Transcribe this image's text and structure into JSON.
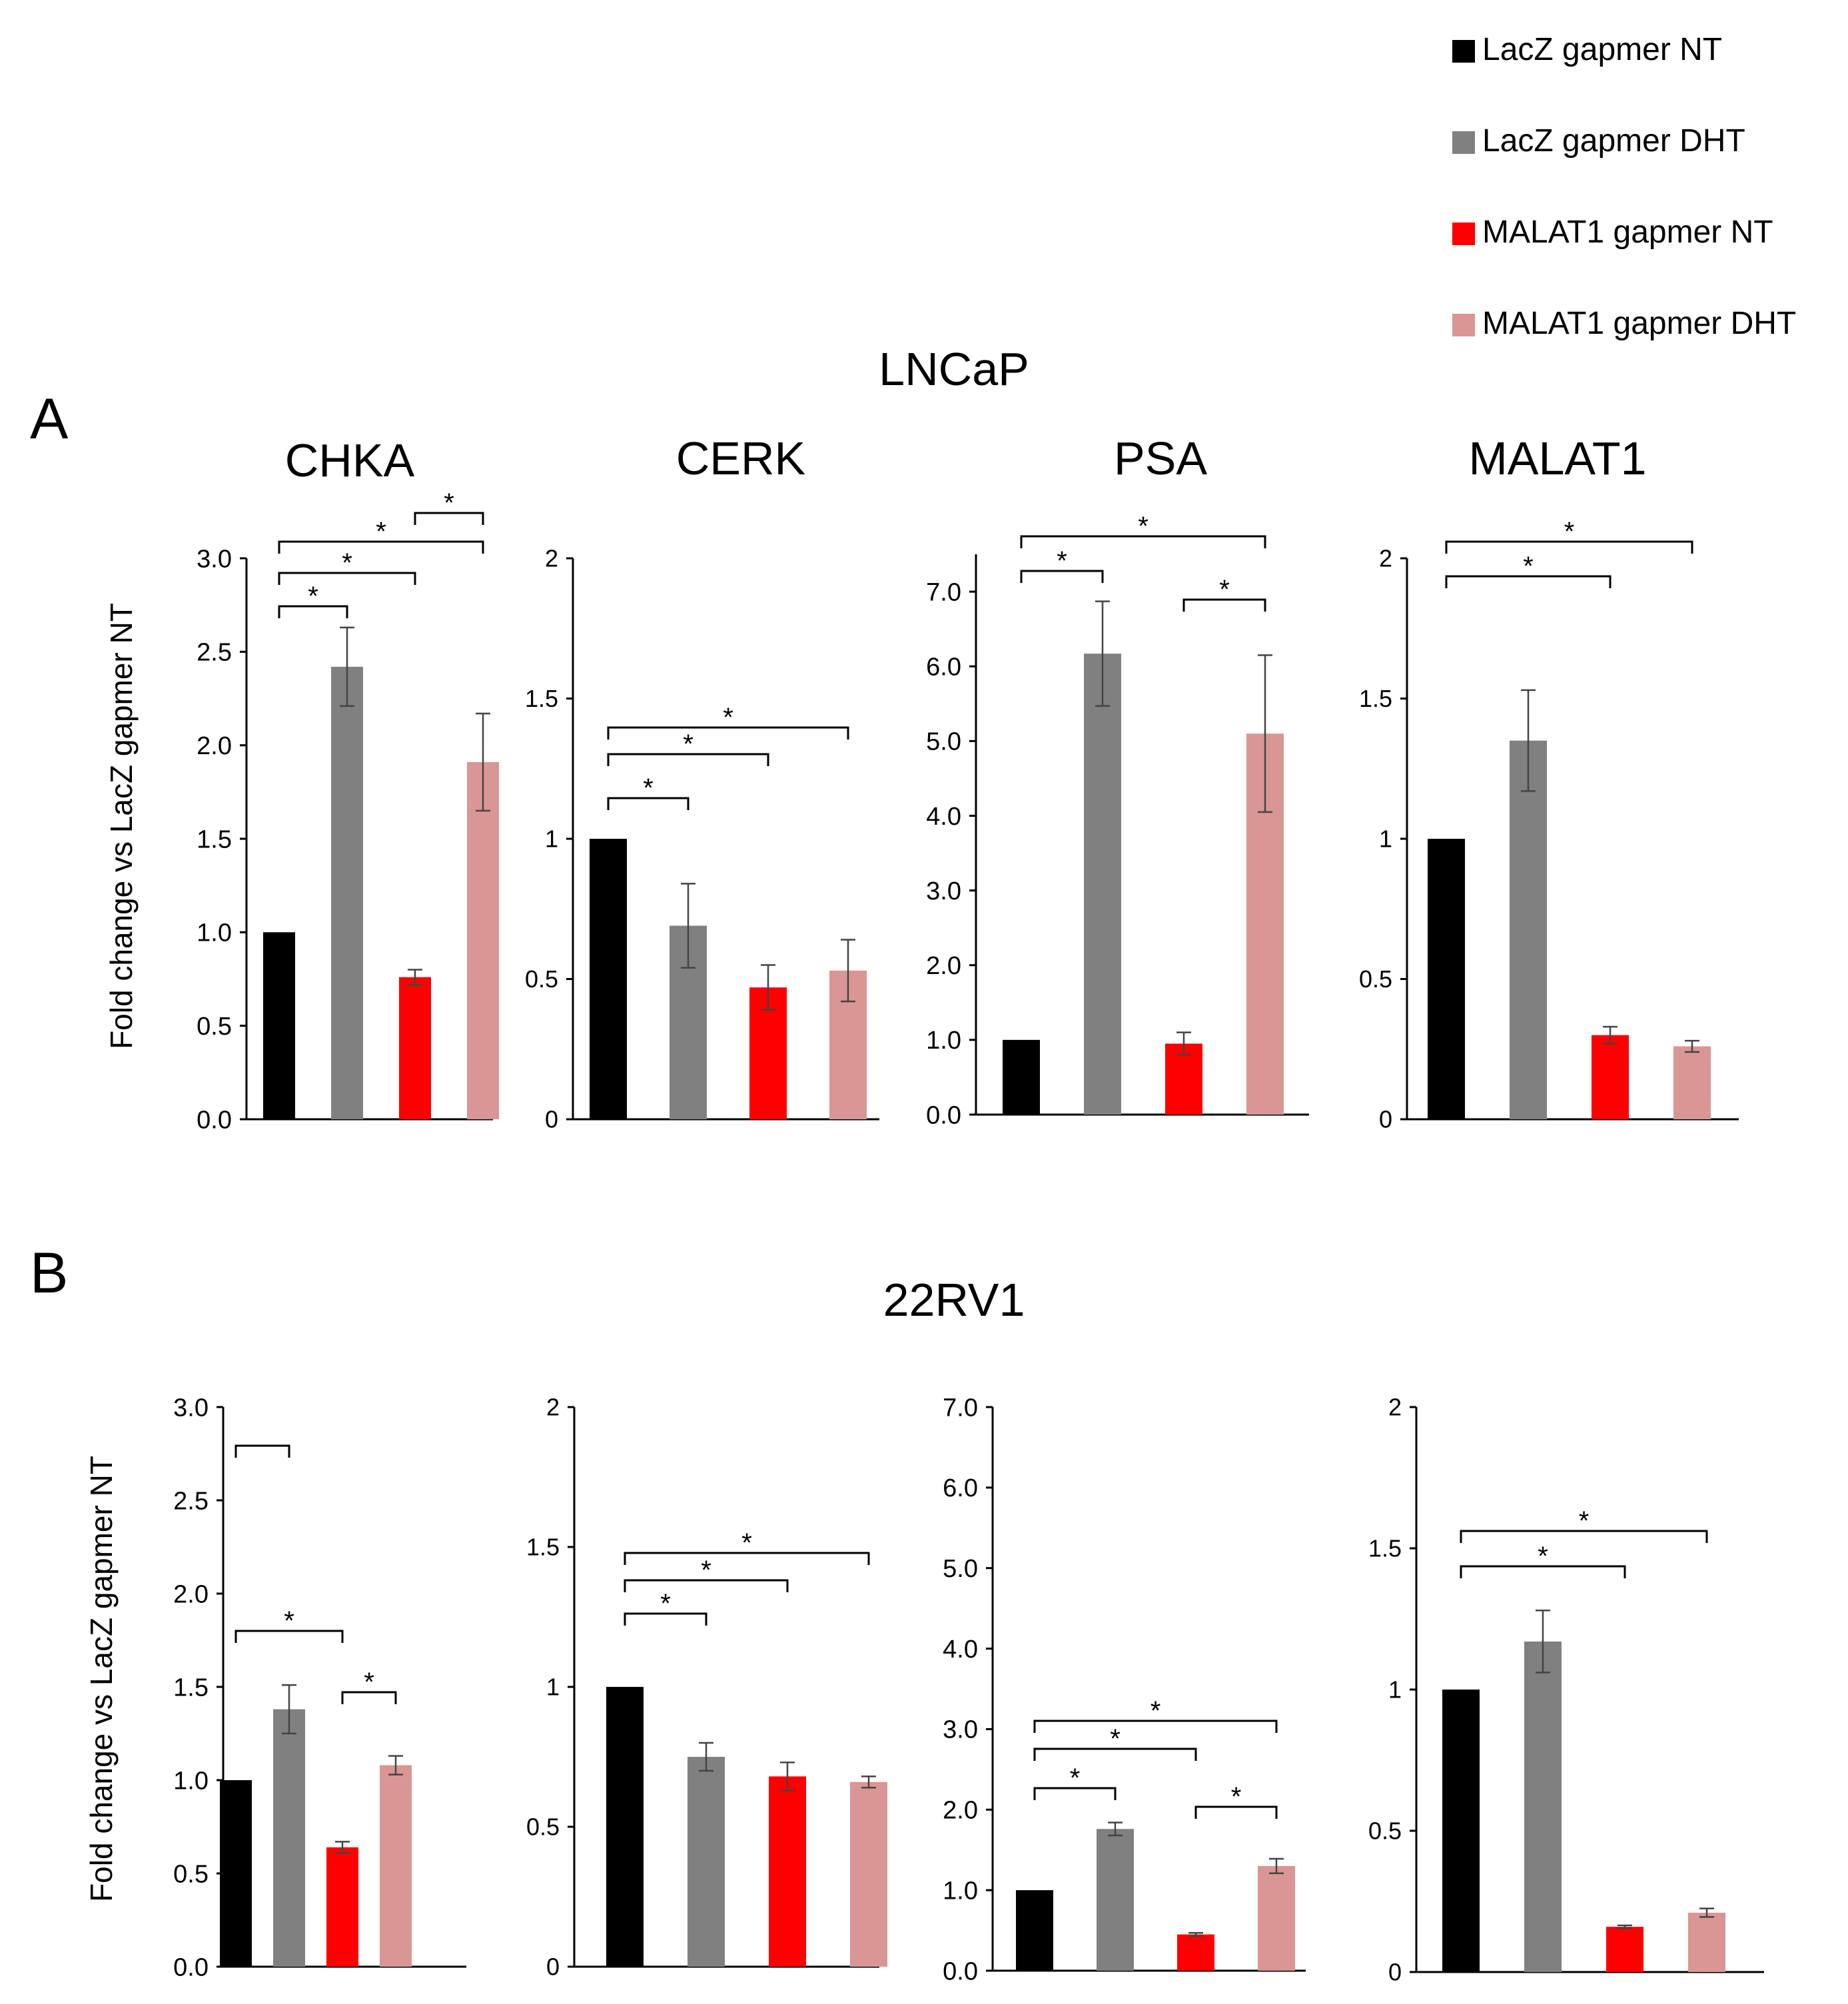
{
  "legend": [
    {
      "label": "LacZ gapmer NT",
      "color": "#000000"
    },
    {
      "label": "LacZ gapmer DHT",
      "color": "#808080"
    },
    {
      "label": "MALAT1 gapmer NT",
      "color": "#ff0000"
    },
    {
      "label": "MALAT1 gapmer DHT",
      "color": "#d99694"
    }
  ],
  "panels": [
    {
      "letter": "A",
      "cell_line": "LNCaP"
    },
    {
      "letter": "B",
      "cell_line": "22RV1"
    }
  ],
  "y_axis_title": "Fold change vs LacZ gapmer NT",
  "chart_data": [
    {
      "type": "bar",
      "panel": "A",
      "title": "CHKA",
      "ylabel": "Fold change vs LacZ gapmer NT",
      "categories": [
        "LacZ gapmer NT",
        "LacZ gapmer DHT",
        "MALAT1 gapmer NT",
        "MALAT1 gapmer DHT"
      ],
      "values": [
        1.0,
        2.42,
        0.76,
        1.91
      ],
      "errors": [
        0,
        0.21,
        0.04,
        0.26
      ],
      "ylim": [
        0,
        3.0
      ],
      "yticks": [
        "0.0",
        "0.5",
        "1.0",
        "1.5",
        "2.0",
        "2.5",
        "3.0"
      ],
      "significance": [
        {
          "from": 0,
          "to": 1,
          "label": "*"
        },
        {
          "from": 0,
          "to": 2,
          "label": "*"
        },
        {
          "from": 0,
          "to": 3,
          "label": "*"
        },
        {
          "from": 2,
          "to": 3,
          "label": "*"
        }
      ]
    },
    {
      "type": "bar",
      "panel": "A",
      "title": "CERK",
      "categories": [
        "LacZ gapmer NT",
        "LacZ gapmer DHT",
        "MALAT1 gapmer NT",
        "MALAT1 gapmer DHT"
      ],
      "values": [
        1.0,
        0.69,
        0.47,
        0.53
      ],
      "errors": [
        0,
        0.15,
        0.08,
        0.11
      ],
      "ylim": [
        0,
        2
      ],
      "yticks": [
        "0",
        "0.5",
        "1",
        "1.5",
        "2"
      ],
      "significance": [
        {
          "from": 0,
          "to": 1,
          "label": "*"
        },
        {
          "from": 0,
          "to": 2,
          "label": "*"
        },
        {
          "from": 0,
          "to": 3,
          "label": "*"
        }
      ]
    },
    {
      "type": "bar",
      "panel": "A",
      "title": "PSA",
      "categories": [
        "LacZ gapmer NT",
        "LacZ gapmer DHT",
        "MALAT1 gapmer NT",
        "MALAT1 gapmer DHT"
      ],
      "values": [
        1.0,
        6.17,
        0.95,
        5.1
      ],
      "errors": [
        0,
        0.7,
        0.15,
        1.05
      ],
      "ylim": [
        0,
        7.5
      ],
      "yticks": [
        "0.0",
        "1.0",
        "2.0",
        "3.0",
        "4.0",
        "5.0",
        "6.0",
        "7.0"
      ],
      "significance": [
        {
          "from": 0,
          "to": 1,
          "label": "*"
        },
        {
          "from": 0,
          "to": 3,
          "label": "*"
        },
        {
          "from": 2,
          "to": 3,
          "label": "*"
        }
      ]
    },
    {
      "type": "bar",
      "panel": "A",
      "title": "MALAT1",
      "categories": [
        "LacZ gapmer NT",
        "LacZ gapmer DHT",
        "MALAT1 gapmer NT",
        "MALAT1 gapmer DHT"
      ],
      "values": [
        1.0,
        1.35,
        0.3,
        0.26
      ],
      "errors": [
        0,
        0.18,
        0.03,
        0.02
      ],
      "ylim": [
        0,
        2
      ],
      "yticks": [
        "0",
        "0.5",
        "1",
        "1.5",
        "2"
      ],
      "significance": [
        {
          "from": 0,
          "to": 2,
          "label": "*"
        },
        {
          "from": 0,
          "to": 3,
          "label": "*"
        }
      ]
    },
    {
      "type": "bar",
      "panel": "B",
      "title": "",
      "ylabel": "Fold change vs LacZ gapmer NT",
      "categories": [
        "LacZ gapmer NT",
        "LacZ gapmer DHT",
        "MALAT1 gapmer NT",
        "MALAT1 gapmer DHT"
      ],
      "values": [
        1.0,
        1.38,
        0.64,
        1.08
      ],
      "errors": [
        0,
        0.13,
        0.03,
        0.05
      ],
      "ylim": [
        0,
        3.0
      ],
      "yticks": [
        "0.0",
        "0.5",
        "1.0",
        "1.5",
        "2.0",
        "2.5",
        "3.0"
      ],
      "significance": [
        {
          "from": 0,
          "to": 1,
          "label": ""
        },
        {
          "from": 0,
          "to": 2,
          "label": "*"
        },
        {
          "from": 2,
          "to": 3,
          "label": "*"
        }
      ]
    },
    {
      "type": "bar",
      "panel": "B",
      "title": "",
      "categories": [
        "LacZ gapmer NT",
        "LacZ gapmer DHT",
        "MALAT1 gapmer NT",
        "MALAT1 gapmer DHT"
      ],
      "values": [
        1.0,
        0.75,
        0.68,
        0.66
      ],
      "errors": [
        0,
        0.05,
        0.05,
        0.02
      ],
      "ylim": [
        0,
        2
      ],
      "yticks": [
        "0",
        "0.5",
        "1",
        "1.5",
        "2"
      ],
      "significance": [
        {
          "from": 0,
          "to": 1,
          "label": "*"
        },
        {
          "from": 0,
          "to": 2,
          "label": "*"
        },
        {
          "from": 0,
          "to": 3,
          "label": "*"
        }
      ]
    },
    {
      "type": "bar",
      "panel": "B",
      "title": "",
      "categories": [
        "LacZ gapmer NT",
        "LacZ gapmer DHT",
        "MALAT1 gapmer NT",
        "MALAT1 gapmer DHT"
      ],
      "values": [
        1.0,
        1.76,
        0.45,
        1.3
      ],
      "errors": [
        0,
        0.08,
        0.02,
        0.09
      ],
      "ylim": [
        0,
        7.0
      ],
      "yticks": [
        "0.0",
        "1.0",
        "2.0",
        "3.0",
        "4.0",
        "5.0",
        "6.0",
        "7.0"
      ],
      "significance": [
        {
          "from": 0,
          "to": 1,
          "label": "*"
        },
        {
          "from": 0,
          "to": 2,
          "label": "*"
        },
        {
          "from": 0,
          "to": 3,
          "label": "*"
        },
        {
          "from": 2,
          "to": 3,
          "label": "*"
        }
      ]
    },
    {
      "type": "bar",
      "panel": "B",
      "title": "",
      "categories": [
        "LacZ gapmer NT",
        "LacZ gapmer DHT",
        "MALAT1 gapmer NT",
        "MALAT1 gapmer DHT"
      ],
      "values": [
        1.0,
        1.17,
        0.16,
        0.21
      ],
      "errors": [
        0,
        0.11,
        0.005,
        0.015
      ],
      "ylim": [
        0,
        2
      ],
      "yticks": [
        "0",
        "0.5",
        "1",
        "1.5",
        "2"
      ],
      "significance": [
        {
          "from": 0,
          "to": 2,
          "label": "*"
        },
        {
          "from": 0,
          "to": 3,
          "label": "*"
        }
      ]
    }
  ]
}
